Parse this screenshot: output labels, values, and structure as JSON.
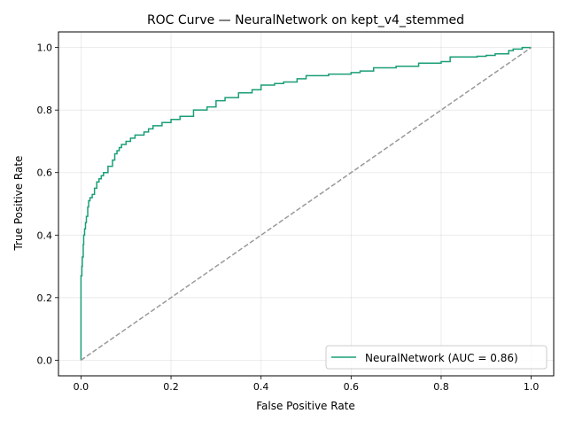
{
  "chart_data": {
    "type": "line",
    "title": "ROC Curve — NeuralNetwork on kept_v4_stemmed",
    "xlabel": "False Positive Rate",
    "ylabel": "True Positive Rate",
    "xlim": [
      -0.05,
      1.05
    ],
    "ylim": [
      -0.05,
      1.05
    ],
    "xticks": [
      0.0,
      0.2,
      0.4,
      0.6,
      0.8,
      1.0
    ],
    "yticks": [
      0.0,
      0.2,
      0.4,
      0.6,
      0.8,
      1.0
    ],
    "xtick_labels": [
      "0.0",
      "0.2",
      "0.4",
      "0.6",
      "0.8",
      "1.0"
    ],
    "ytick_labels": [
      "0.0",
      "0.2",
      "0.4",
      "0.6",
      "0.8",
      "1.0"
    ],
    "grid": true,
    "legend_position": "lower-right",
    "series": [
      {
        "name": "NeuralNetwork (AUC = 0.86)",
        "color": "#1a9e77",
        "style": "solid",
        "x": [
          0.0,
          0.0,
          0.002,
          0.003,
          0.005,
          0.006,
          0.008,
          0.01,
          0.012,
          0.015,
          0.017,
          0.02,
          0.025,
          0.03,
          0.035,
          0.04,
          0.045,
          0.05,
          0.06,
          0.07,
          0.075,
          0.08,
          0.085,
          0.09,
          0.1,
          0.11,
          0.12,
          0.14,
          0.15,
          0.16,
          0.18,
          0.2,
          0.22,
          0.25,
          0.28,
          0.3,
          0.32,
          0.35,
          0.38,
          0.4,
          0.43,
          0.45,
          0.48,
          0.5,
          0.55,
          0.6,
          0.62,
          0.65,
          0.7,
          0.75,
          0.8,
          0.82,
          0.85,
          0.88,
          0.9,
          0.92,
          0.94,
          0.95,
          0.96,
          0.98,
          1.0
        ],
        "y": [
          0.0,
          0.27,
          0.3,
          0.33,
          0.37,
          0.4,
          0.42,
          0.44,
          0.46,
          0.49,
          0.51,
          0.52,
          0.53,
          0.55,
          0.57,
          0.58,
          0.59,
          0.6,
          0.62,
          0.64,
          0.66,
          0.67,
          0.68,
          0.69,
          0.7,
          0.71,
          0.72,
          0.73,
          0.74,
          0.75,
          0.76,
          0.77,
          0.78,
          0.8,
          0.81,
          0.83,
          0.84,
          0.855,
          0.865,
          0.88,
          0.885,
          0.89,
          0.9,
          0.91,
          0.915,
          0.92,
          0.925,
          0.935,
          0.94,
          0.95,
          0.955,
          0.97,
          0.97,
          0.972,
          0.975,
          0.98,
          0.98,
          0.99,
          0.995,
          1.0,
          1.0
        ]
      },
      {
        "name": "",
        "color": "#999999",
        "style": "dashed",
        "x": [
          0.0,
          1.0
        ],
        "y": [
          0.0,
          1.0
        ]
      }
    ]
  }
}
